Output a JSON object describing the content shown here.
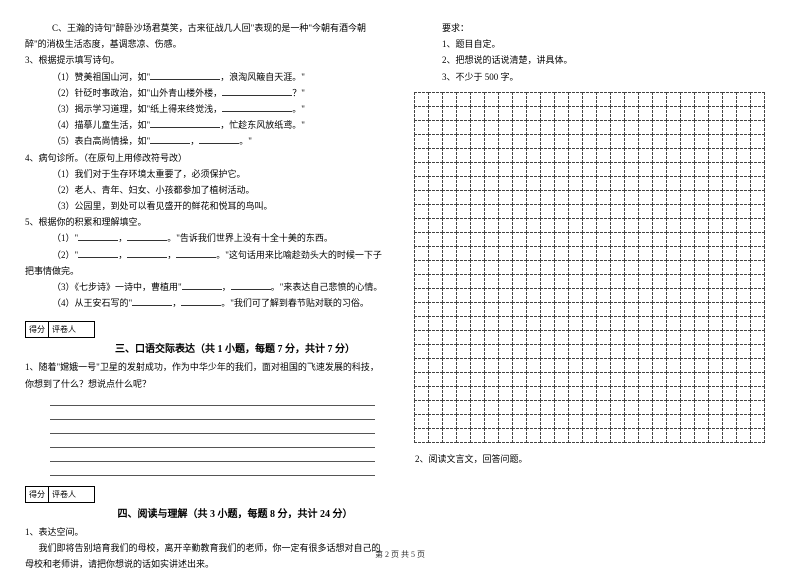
{
  "left": {
    "item_c": "C、王瀚的诗句\"醉卧沙场君莫笑，古来征战几人回\"表现的是一种\"今朝有酒今朝醉\"的消极生活态度，基调悲凉、伤感。",
    "q3": "3、根据提示填写诗句。",
    "q3_1a": "（1）赞美祖国山河，如\"",
    "q3_1b": "，浪淘风簸自天涯。\"",
    "q3_2a": "（2）针砭时事政治，如\"山外青山楼外楼，",
    "q3_2b": "？\"",
    "q3_3a": "（3）揭示学习道理，如\"纸上得来终觉浅，",
    "q3_3b": "。\"",
    "q3_4a": "（4）描摹儿童生活，如\"",
    "q3_4b": "，忙趁东风放纸鸢。\"",
    "q3_5a": "（5）表白高尚情操，如\"",
    "q3_5b": "，",
    "q3_5c": "。\"",
    "q4": "4、病句诊所。（在原句上用修改符号改）",
    "q4_1": "（1）我们对于生存环境太重要了，必须保护它。",
    "q4_2": "（2）老人、青年、妇女、小孩都参加了植树活动。",
    "q4_3": "（3）公园里，到处可以看见盛开的鲜花和悦耳的鸟叫。",
    "q5": "5、根据你的积累和理解填空。",
    "q5_1a": "（1）\"",
    "q5_1b": "，",
    "q5_1c": "。\"告诉我们世界上没有十全十美的东西。",
    "q5_2a": "（2）\"",
    "q5_2b": "，",
    "q5_2c": "，",
    "q5_2d": "。\"这句话用来比喻趁劲头大的时候一下子把事情做完。",
    "q5_3a": "（3）《七步诗》一诗中，曹植用\"",
    "q5_3b": "，",
    "q5_3c": "。\"来表达自己悲愤的心情。",
    "q5_4a": "（4）从王安石写的\"",
    "q5_4b": "，",
    "q5_4c": "。\"我们可了解到春节贴对联的习俗。",
    "score_label_1": "得分",
    "score_label_2": "评卷人",
    "section3_title": "三、口语交际表达（共 1 小题，每题 7 分，共计 7 分）",
    "section3_q1": "1、随着\"嫦娥一号\"卫星的发射成功，作为中华少年的我们，面对祖国的飞速发展的科技，你想到了什么？想说点什么呢？",
    "section4_title": "四、阅读与理解（共 3 小题，每题 8 分，共计 24 分）",
    "section4_q1": "1、表达空间。",
    "section4_q1_text": "我们即将告别培育我们的母校，离开辛勤教育我们的老师，你一定有很多话想对自己的母校和老师讲，请把你想说的话如实讲述出来。"
  },
  "right": {
    "req_label": "要求：",
    "req1": "1、题目自定。",
    "req2": "2、把想说的话说清楚，讲具体。",
    "req3": "3、不少于 500 字。",
    "q2": "2、阅读文言文，回答问题。"
  },
  "grid": {
    "rows": 25,
    "cols": 25
  },
  "footer": "第 2 页 共 5 页",
  "colors": {
    "text": "#000000",
    "bg": "#ffffff",
    "border": "#444444"
  }
}
